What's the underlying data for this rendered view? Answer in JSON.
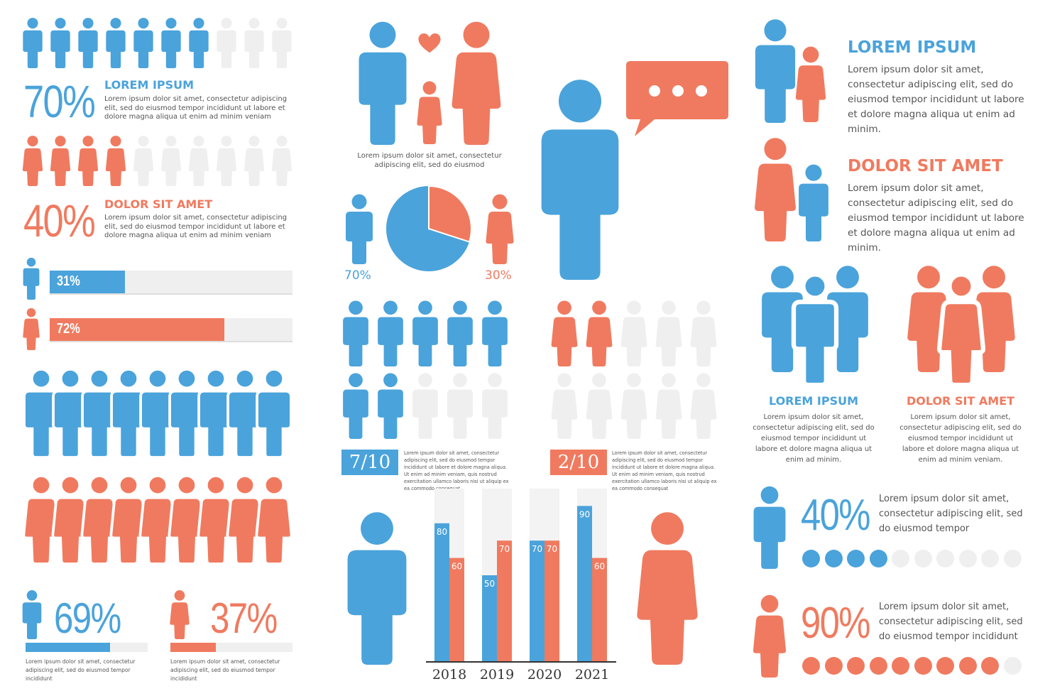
{
  "colors": {
    "blue": "#4aa3db",
    "red": "#f07a5f",
    "gray": "#efefef",
    "text": "#555555"
  },
  "icons": {
    "male": "male-person-icon",
    "female": "female-person-icon",
    "heart": "heart-icon",
    "speech": "speech-bubble-icon"
  },
  "left": {
    "stat1": {
      "value": "70%",
      "filled": 7,
      "total": 10,
      "title": "LOREM IPSUM",
      "text": "Lorem ipsum dolor sit amet, consectetur adipiscing elit, sed do eiusmod tempor incididunt ut labore et dolore magna aliqua ut enim ad minim veniam"
    },
    "stat2": {
      "value": "40%",
      "filled": 4,
      "total": 10,
      "title": "DOLOR SIT AMET",
      "text": "Lorem ipsum dolor sit amet, consectetur adipiscing elit, sed do eiusmod tempor incididunt ut labore et dolore magna aliqua ut enim ad minim veniam"
    },
    "bar1": {
      "label": "31%",
      "value": 0.31
    },
    "bar2": {
      "label": "72%",
      "value": 0.72
    },
    "bottom1": {
      "value": "69%",
      "fill": 0.69,
      "text": "Lorem ipsum dolor sit amet, consectetur adipiscing elit, sed do eiusmod tempor incididunt"
    },
    "bottom2": {
      "value": "37%",
      "fill": 0.37,
      "text": "Lorem ipsum dolor sit amet, consectetur adipiscing elit, sed do eiusmod tempor incididunt"
    }
  },
  "middle": {
    "family_caption": "Lorem ipsum dolor sit amet, consectetur adipiscing elit, sed do eiusmod",
    "pie": {
      "male_label": "70%",
      "female_label": "30%",
      "male": 0.7,
      "female": 0.3
    },
    "grid1": {
      "fraction": "7/10",
      "filled": 7,
      "text": "Lorem ipsum dolor sit amet, consectetur adipiscing elit, sed do eiusmod tempor incididunt ut labore et dolore magna aliqua. Ut enim ad minim veniam, quis nostrud exercitation ullamco laboris nisi ut aliquip ex ea commodo consequat"
    },
    "grid2": {
      "fraction": "2/10",
      "filled": 2,
      "text": "Lorem ipsum dolor sit amet, consectetur adipiscing elit, sed do eiusmod tempor incididunt ut labore et dolore magna aliqua. Ut enim ad minim veniam, quis nostrud exercitation ullamco laboris nisi ut aliquip ex ea commodo consequat"
    }
  },
  "chart_data": {
    "type": "bar",
    "categories": [
      "2018",
      "2019",
      "2020",
      "2021"
    ],
    "series": [
      {
        "values": [
          80,
          50,
          70,
          90
        ]
      },
      {
        "values": [
          60,
          70,
          70,
          60
        ]
      }
    ],
    "ylim": [
      0,
      100
    ]
  },
  "right": {
    "block1": {
      "title": "LOREM IPSUM",
      "text": "Lorem ipsum dolor sit amet, consectetur adipiscing elit, sed do eiusmod tempor incididunt ut labore et dolore magna aliqua ut enim ad minim."
    },
    "block2": {
      "title": "DOLOR SIT AMET",
      "text": "Lorem ipsum dolor sit amet, consectetur adipiscing elit, sed do eiusmod tempor incididunt ut labore et dolore magna aliqua ut enim ad minim."
    },
    "group1": {
      "title": "LOREM IPSUM",
      "text": "Lorem ipsum dolor sit amet, consectetur adipiscing elit, sed do eiusmod tempor incididunt ut labore et dolore magna aliqua ut enim ad minim."
    },
    "group2": {
      "title": "DOLOR SIT AMET",
      "text": "Lorem ipsum dolor sit amet, consectetur adipiscing elit, sed do eiusmod tempor incididunt ut labore et dolore magna aliqua ut enim ad minim veniam."
    },
    "dots1": {
      "value": "40%",
      "filled": 4,
      "total": 10,
      "text": "Lorem ipsum dolor sit amet, consectetur adipiscing elit, sed do eiusmod tempor"
    },
    "dots2": {
      "value": "90%",
      "filled": 9,
      "total": 10,
      "text": "Lorem ipsum dolor sit amet, consectetur adipiscing elit, sed do eiusmod tempor incididunt"
    }
  }
}
